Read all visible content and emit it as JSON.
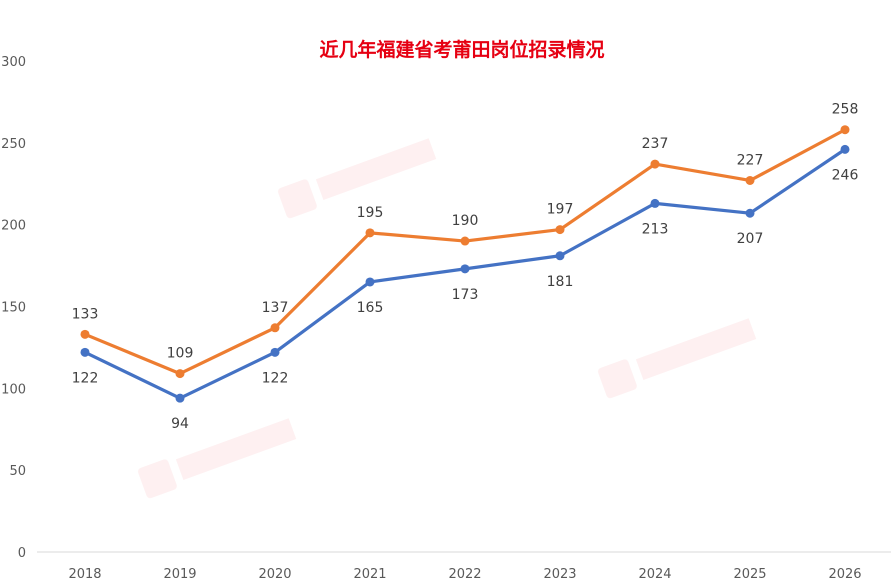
{
  "chart_data": {
    "type": "line",
    "title": "近几年福建省考莆田岗位招录情况",
    "xlabel": "",
    "ylabel": "",
    "categories": [
      "2018",
      "2019",
      "2020",
      "2021",
      "2022",
      "2023",
      "2024",
      "2025",
      "2026"
    ],
    "series": [
      {
        "color": "#4472c4",
        "values": [
          122,
          94,
          122,
          165,
          173,
          181,
          213,
          207,
          246
        ]
      },
      {
        "color": "#ed7d31",
        "values": [
          133,
          109,
          137,
          195,
          190,
          197,
          237,
          227,
          258
        ]
      }
    ],
    "ylim": [
      0,
      300
    ],
    "yticks": [
      0,
      50,
      100,
      150,
      200,
      250,
      300
    ],
    "grid": false,
    "legend": "none"
  }
}
